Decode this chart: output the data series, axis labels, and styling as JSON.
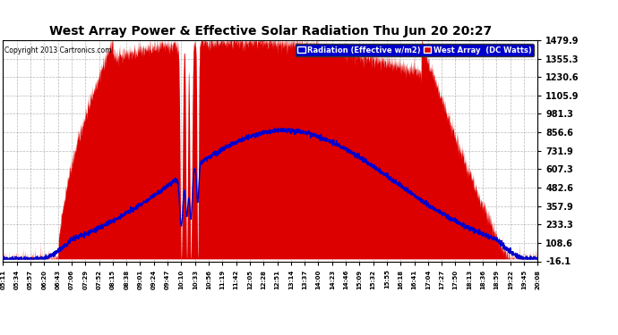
{
  "title": "West Array Power & Effective Solar Radiation Thu Jun 20 20:27",
  "copyright": "Copyright 2013 Cartronics.com",
  "legend_labels": [
    "Radiation (Effective w/m2)",
    "West Array  (DC Watts)"
  ],
  "legend_bg": "#0000cc",
  "legend_text_color": "#ffffff",
  "red_color": "#dd0000",
  "blue_color": "#0000cc",
  "grid_color": "#999999",
  "bg_color": "#ffffff",
  "y_ticks": [
    -16.1,
    108.6,
    233.3,
    357.9,
    482.6,
    607.3,
    731.9,
    856.6,
    981.3,
    1105.9,
    1230.6,
    1355.3,
    1479.9
  ],
  "x_labels": [
    "05:11",
    "05:34",
    "05:57",
    "06:20",
    "06:43",
    "07:06",
    "07:29",
    "07:52",
    "08:15",
    "08:38",
    "09:01",
    "09:24",
    "09:47",
    "10:10",
    "10:33",
    "10:56",
    "11:19",
    "11:42",
    "12:05",
    "12:28",
    "12:51",
    "13:14",
    "13:37",
    "14:00",
    "14:23",
    "14:46",
    "15:09",
    "15:32",
    "15:55",
    "16:18",
    "16:41",
    "17:04",
    "17:27",
    "17:50",
    "18:13",
    "18:36",
    "18:59",
    "19:22",
    "19:45",
    "20:08"
  ],
  "ymin": -16.1,
  "ymax": 1479.9,
  "n_points": 40
}
